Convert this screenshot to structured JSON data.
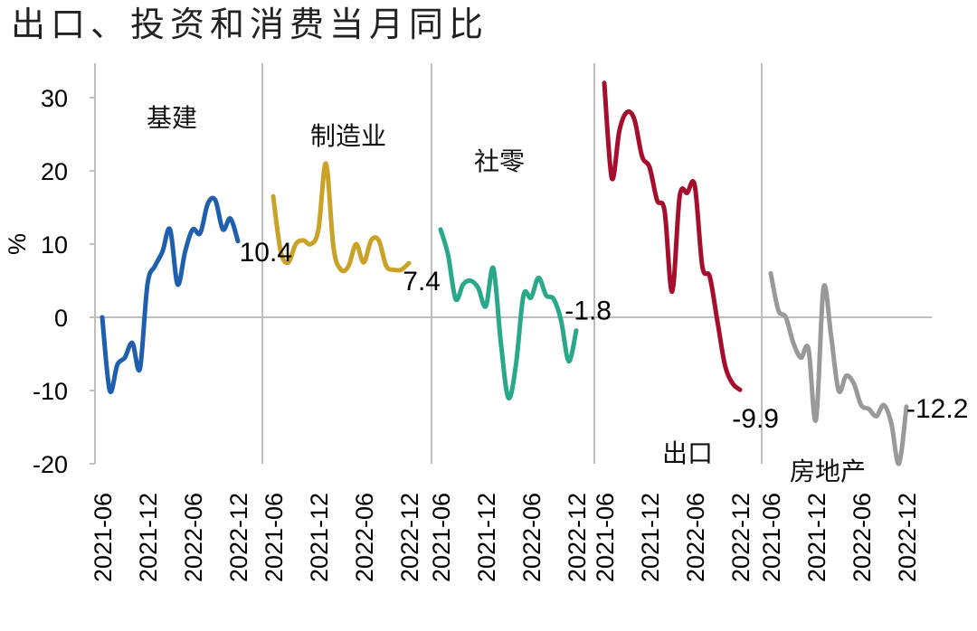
{
  "chart_data": {
    "type": "line",
    "title": "出口、投资和消费当月同比",
    "ylabel": "%",
    "ylim": [
      -20,
      35
    ],
    "yticks": [
      30,
      20,
      10,
      0,
      -10,
      -20
    ],
    "x_tick_labels": [
      "2021-06",
      "2021-12",
      "2022-06",
      "2022-12"
    ],
    "grid": false,
    "panels": [
      {
        "name": "基建",
        "color": "#1f5fad",
        "x": [
          "2021-06",
          "2021-07",
          "2021-08",
          "2021-09",
          "2021-10",
          "2021-11",
          "2021-12",
          "2022-01",
          "2022-02",
          "2022-03",
          "2022-04",
          "2022-05",
          "2022-06",
          "2022-07",
          "2022-08",
          "2022-09",
          "2022-10",
          "2022-11",
          "2022-12"
        ],
        "values": [
          0,
          -10,
          -6.5,
          -5.5,
          -3.5,
          -7,
          4.5,
          7,
          9,
          12,
          4.5,
          9,
          12,
          11.5,
          15.5,
          16,
          12,
          13.5,
          10.4
        ],
        "end_label": "10.4"
      },
      {
        "name": "制造业",
        "color": "#c9a227",
        "x": [
          "2021-06",
          "2021-07",
          "2021-08",
          "2021-09",
          "2021-10",
          "2021-11",
          "2021-12",
          "2022-01",
          "2022-02",
          "2022-03",
          "2022-04",
          "2022-05",
          "2022-06",
          "2022-07",
          "2022-08",
          "2022-09",
          "2022-10",
          "2022-11",
          "2022-12"
        ],
        "values": [
          16.5,
          9,
          7.5,
          10,
          10.5,
          10,
          12,
          21,
          9.5,
          6.5,
          7,
          10,
          7.5,
          10.5,
          10.5,
          7,
          6.5,
          6.5,
          7.4
        ],
        "end_label": "7.4"
      },
      {
        "name": "社零",
        "color": "#2aa88a",
        "x": [
          "2021-06",
          "2021-07",
          "2021-08",
          "2021-09",
          "2021-10",
          "2021-11",
          "2021-12",
          "2022-01",
          "2022-02",
          "2022-03",
          "2022-04",
          "2022-05",
          "2022-06",
          "2022-07",
          "2022-08",
          "2022-09",
          "2022-10",
          "2022-11",
          "2022-12"
        ],
        "values": [
          12,
          8.5,
          2.5,
          4.5,
          5,
          4,
          1.5,
          6.7,
          -3.5,
          -11,
          -6.5,
          3,
          2.7,
          5.4,
          3,
          2.5,
          -0.5,
          -6,
          -1.8
        ],
        "end_label": "-1.8"
      },
      {
        "name": "出口",
        "color": "#a50f2d",
        "x": [
          "2021-06",
          "2021-07",
          "2021-08",
          "2021-09",
          "2021-10",
          "2021-11",
          "2021-12",
          "2022-01",
          "2022-02",
          "2022-03",
          "2022-04",
          "2022-05",
          "2022-06",
          "2022-07",
          "2022-08",
          "2022-09",
          "2022-10",
          "2022-11",
          "2022-12"
        ],
        "values": [
          32,
          19,
          25.5,
          28,
          27,
          22,
          20.5,
          16,
          14.5,
          3.5,
          16.5,
          17,
          18,
          7,
          5.5,
          -0.5,
          -6.5,
          -9,
          -9.9
        ],
        "end_label": "-9.9"
      },
      {
        "name": "房地产",
        "color": "#999999",
        "x": [
          "2021-06",
          "2021-07",
          "2021-08",
          "2021-09",
          "2021-10",
          "2021-11",
          "2021-12",
          "2022-01",
          "2022-02",
          "2022-03",
          "2022-04",
          "2022-05",
          "2022-06",
          "2022-07",
          "2022-08",
          "2022-09",
          "2022-10",
          "2022-11",
          "2022-12"
        ],
        "values": [
          6,
          1,
          0,
          -3.5,
          -5.5,
          -4.3,
          -14,
          4,
          -2.5,
          -10,
          -8,
          -9,
          -12,
          -12.5,
          -13.5,
          -12,
          -14.5,
          -20,
          -12.2
        ],
        "end_label": "-12.2"
      }
    ]
  }
}
